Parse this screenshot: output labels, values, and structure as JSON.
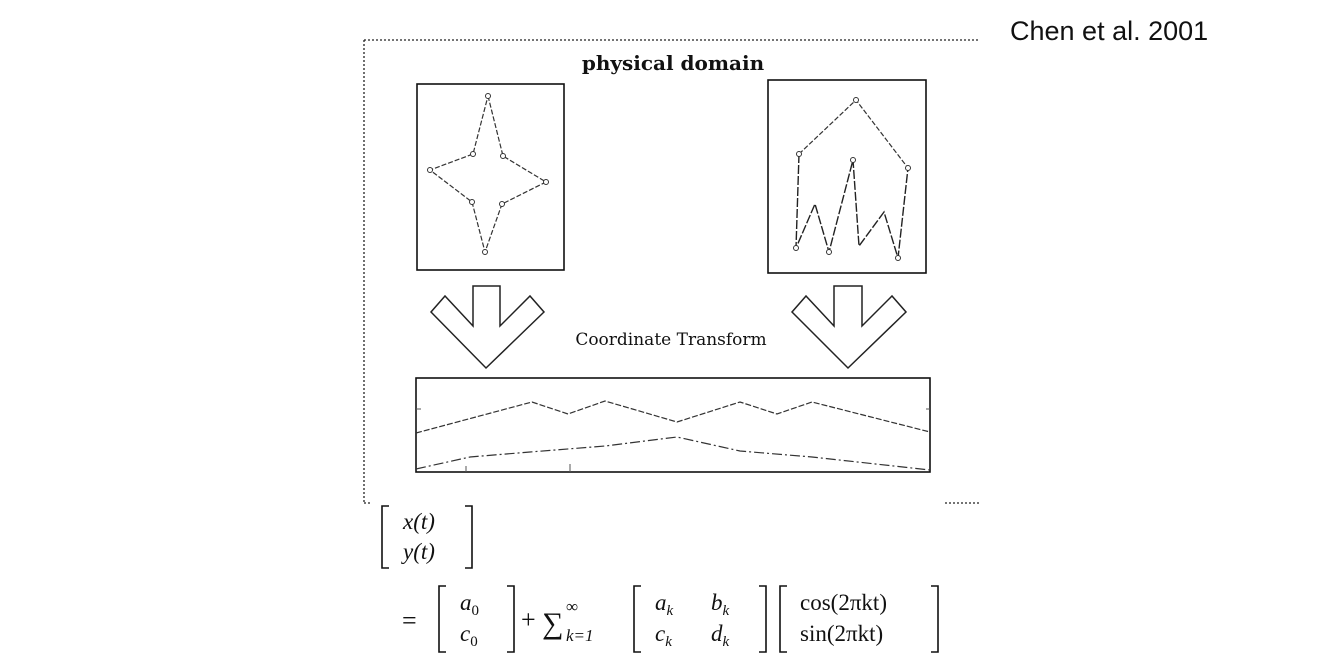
{
  "citation": "Chen et al. 2001",
  "diagram": {
    "title": "physical domain",
    "transform_label": "Coordinate Transform"
  },
  "equation": {
    "lhs_top": "x(t)",
    "lhs_bottom": "y(t)",
    "equals": "=",
    "a0": "a",
    "a0_sub": "0",
    "c0": "c",
    "c0_sub": "0",
    "plus": "+",
    "sum_symbol": "∑",
    "sum_upper": "∞",
    "sum_lower": "k=1",
    "ak": "a",
    "ak_sub": "k",
    "bk": "b",
    "bk_sub": "k",
    "ck": "c",
    "ck_sub": "k",
    "dk": "d",
    "dk_sub": "k",
    "cos_term": "cos(2πkt)",
    "sin_term": "sin(2πkt)"
  }
}
